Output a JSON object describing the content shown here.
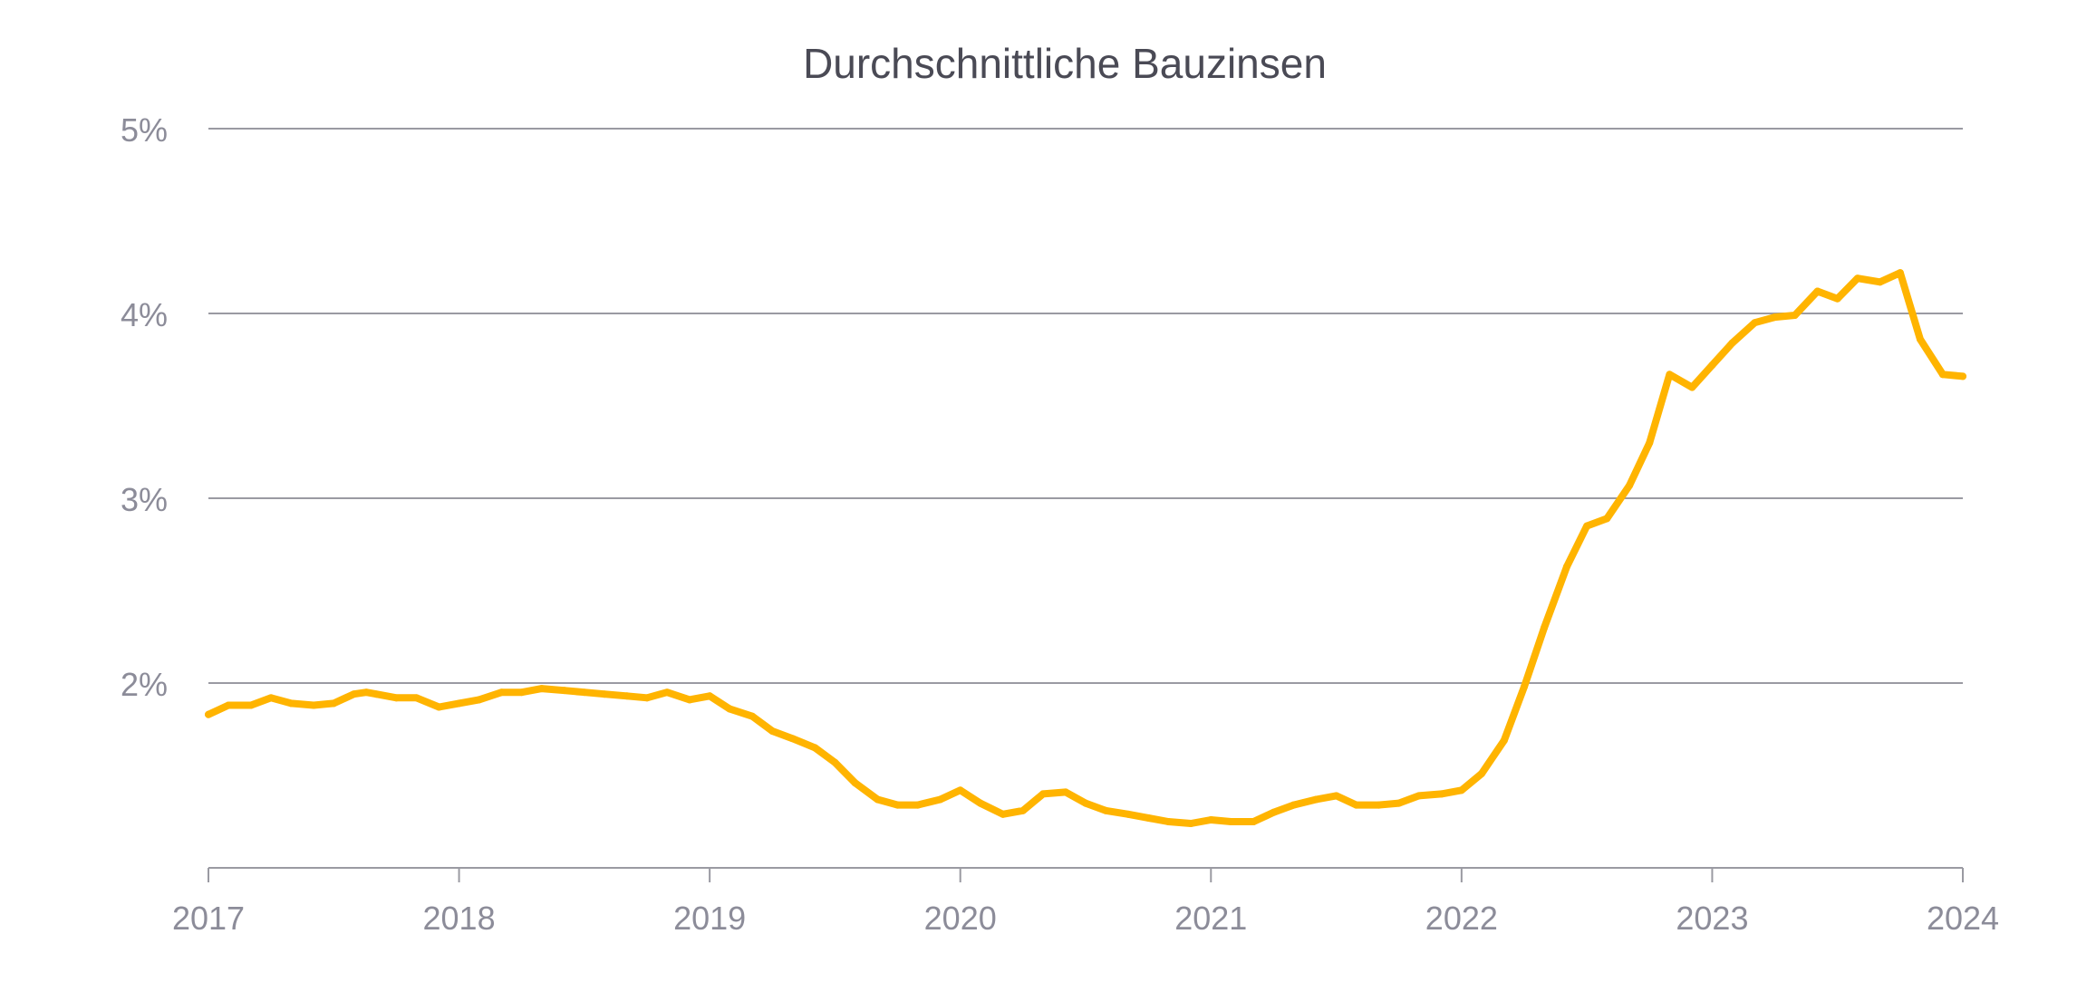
{
  "chart_data": {
    "type": "line",
    "title": "Durchschnittliche Bauzinsen",
    "xlabel": "",
    "ylabel": "",
    "x_ticks": [
      "2017",
      "2018",
      "2019",
      "2020",
      "2021",
      "2022",
      "2023",
      "2024"
    ],
    "y_ticks": [
      "2%",
      "3%",
      "4%",
      "5%"
    ],
    "xlim": [
      2017,
      2024
    ],
    "ylim": [
      1,
      5
    ],
    "grid": true,
    "legend": "none",
    "colors": {
      "line": "#FFB400",
      "grid": "#9A9AA2",
      "title": "#4A4A55",
      "tick": "#8C8C99"
    },
    "series": [
      {
        "x": [
          2017.0,
          2017.08,
          2017.17,
          2017.25,
          2017.33,
          2017.42,
          2017.5,
          2017.58,
          2017.63,
          2017.67,
          2017.75,
          2017.83,
          2017.92,
          2018.0,
          2018.08,
          2018.17,
          2018.25,
          2018.33,
          2018.42,
          2018.5,
          2018.58,
          2018.67,
          2018.75,
          2018.83,
          2018.92,
          2019.0,
          2019.08,
          2019.17,
          2019.25,
          2019.33,
          2019.42,
          2019.5,
          2019.58,
          2019.67,
          2019.75,
          2019.83,
          2019.92,
          2020.0,
          2020.08,
          2020.17,
          2020.25,
          2020.33,
          2020.42,
          2020.5,
          2020.58,
          2020.67,
          2020.75,
          2020.83,
          2020.92,
          2021.0,
          2021.08,
          2021.17,
          2021.25,
          2021.33,
          2021.42,
          2021.5,
          2021.58,
          2021.67,
          2021.75,
          2021.83,
          2021.92,
          2022.0,
          2022.08,
          2022.17,
          2022.25,
          2022.33,
          2022.42,
          2022.5,
          2022.58,
          2022.67,
          2022.75,
          2022.83,
          2022.92,
          2023.0,
          2023.08,
          2023.17,
          2023.25,
          2023.33,
          2023.42,
          2023.5,
          2023.58,
          2023.67,
          2023.75,
          2023.83,
          2023.92,
          2024.0
        ],
        "y": [
          1.83,
          1.88,
          1.88,
          1.92,
          1.89,
          1.88,
          1.89,
          1.94,
          1.95,
          1.94,
          1.92,
          1.92,
          1.87,
          1.89,
          1.91,
          1.95,
          1.95,
          1.97,
          1.96,
          1.95,
          1.94,
          1.93,
          1.92,
          1.95,
          1.91,
          1.93,
          1.86,
          1.82,
          1.74,
          1.7,
          1.65,
          1.57,
          1.46,
          1.37,
          1.34,
          1.34,
          1.37,
          1.42,
          1.35,
          1.29,
          1.31,
          1.4,
          1.41,
          1.35,
          1.31,
          1.29,
          1.27,
          1.25,
          1.24,
          1.26,
          1.25,
          1.25,
          1.3,
          1.34,
          1.37,
          1.39,
          1.34,
          1.34,
          1.35,
          1.39,
          1.4,
          1.42,
          1.51,
          1.69,
          1.98,
          2.3,
          2.63,
          2.85,
          2.89,
          3.07,
          3.3,
          3.67,
          3.6,
          3.72,
          3.84,
          3.95,
          3.98,
          3.99,
          4.12,
          4.08,
          4.19,
          4.17,
          4.22,
          3.86,
          3.67,
          3.66
        ]
      }
    ]
  }
}
